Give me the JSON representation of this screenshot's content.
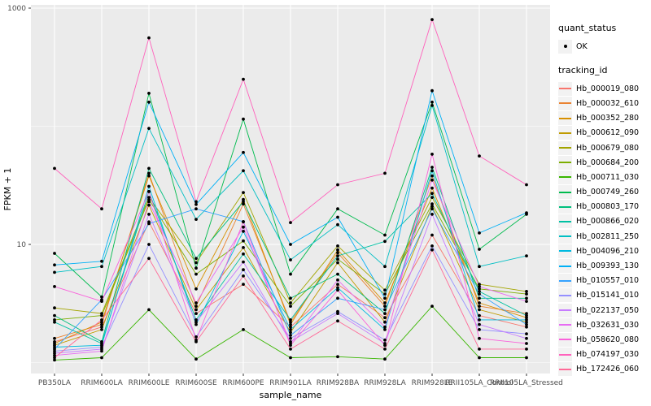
{
  "figure": {
    "background": "#ffffff",
    "panel_background": "#EBEBEB",
    "grid_color": "#FFFFFF",
    "tick_color": "#333333",
    "tick_label_color": "#4D4D4D",
    "point_color": "#000000"
  },
  "legend": {
    "quant_status_title": "quant_status",
    "ok_label": "OK",
    "tracking_id_title": "tracking_id"
  },
  "axes": {
    "x_title": "sample_name",
    "y_title": "FPKM + 1",
    "y_tick_labels": [
      "10",
      "1000"
    ]
  },
  "chart_data": {
    "type": "line",
    "title": "",
    "xlabel": "sample_name",
    "ylabel": "FPKM + 1",
    "y_scale": "log10",
    "y_ticks": [
      10,
      1000
    ],
    "y_grid_minor": [
      1,
      100
    ],
    "ylim": [
      0.8,
      1500
    ],
    "grid": true,
    "legend_position": "right",
    "quant_status": "OK",
    "categories": [
      "PB350LA",
      "RRIM600LA",
      "RRIM600LE",
      "RRIM600SE",
      "RRIM600PE",
      "RRIM901LA",
      "RRIM928BA",
      "RRIM928LA",
      "RRIM928LE",
      "RRII105LA_Control",
      "RRII105LA_Stressed"
    ],
    "series": [
      {
        "name": "Hb_000019_080",
        "color": "#F8766D",
        "values": [
          1.5,
          2.0,
          15.5,
          2.6,
          4.6,
          2.0,
          4.6,
          2.4,
          12,
          2.5,
          2.0
        ]
      },
      {
        "name": "Hb_000032_610",
        "color": "#EA8331",
        "values": [
          1.6,
          2.1,
          40,
          3.0,
          22,
          2.2,
          8.5,
          3.0,
          38,
          3.0,
          2.6
        ]
      },
      {
        "name": "Hb_000352_280",
        "color": "#D89000",
        "values": [
          1.45,
          2.2,
          38,
          4.2,
          24,
          2.1,
          9.0,
          3.2,
          30,
          3.2,
          2.4
        ]
      },
      {
        "name": "Hb_000612_090",
        "color": "#C09B00",
        "values": [
          1.4,
          1.9,
          21.5,
          2.8,
          9.4,
          1.8,
          7.0,
          2.2,
          21,
          2.8,
          2.2
        ]
      },
      {
        "name": "Hb_000679_080",
        "color": "#A3A500",
        "values": [
          2.9,
          2.6,
          25,
          7.0,
          27.5,
          3.2,
          9.7,
          4.1,
          25,
          4.6,
          4.0
        ]
      },
      {
        "name": "Hb_000684_200",
        "color": "#7CAE00",
        "values": [
          2.3,
          2.5,
          24,
          5.6,
          10.7,
          3.0,
          7.5,
          3.8,
          22,
          4.2,
          3.8
        ]
      },
      {
        "name": "Hb_000711_030",
        "color": "#39B600",
        "values": [
          1.05,
          1.1,
          2.8,
          1.07,
          1.9,
          1.1,
          1.12,
          1.07,
          3.0,
          1.1,
          1.1
        ]
      },
      {
        "name": "Hb_000749_260",
        "color": "#00BB4E",
        "values": [
          8.4,
          3.6,
          190,
          6.3,
          115,
          5.6,
          20,
          12,
          160,
          9.1,
          18
        ]
      },
      {
        "name": "Hb_000803_170",
        "color": "#00BF7D",
        "values": [
          2.5,
          1.5,
          44,
          7.6,
          23,
          3.5,
          5.6,
          2.6,
          45,
          3.5,
          3.5
        ]
      },
      {
        "name": "Hb_000866_020",
        "color": "#00C1A3",
        "values": [
          2.2,
          1.45,
          28,
          2.3,
          8.3,
          2.3,
          8.0,
          10.6,
          27,
          4.0,
          2.5
        ]
      },
      {
        "name": "Hb_002811_250",
        "color": "#00BFC4",
        "values": [
          5.8,
          6.5,
          96,
          16.3,
          42,
          7.4,
          14.7,
          6.5,
          150,
          6.5,
          8.0
        ]
      },
      {
        "name": "Hb_004096_210",
        "color": "#00BAE0",
        "values": [
          1.35,
          1.4,
          31,
          2.1,
          12.9,
          1.9,
          4.3,
          1.9,
          42,
          2.3,
          2.3
        ]
      },
      {
        "name": "Hb_009393_130",
        "color": "#00B0F6",
        "values": [
          6.7,
          7.2,
          160,
          21.8,
          60,
          10,
          17,
          3.5,
          200,
          12.5,
          18.5
        ]
      },
      {
        "name": "Hb_010557_010",
        "color": "#35A2FF",
        "values": [
          1.3,
          3.4,
          15,
          20,
          15.6,
          1.7,
          3.5,
          2.8,
          20,
          3.8,
          2.1
        ]
      },
      {
        "name": "Hb_015141_010",
        "color": "#9590FF",
        "values": [
          1.25,
          1.35,
          10,
          1.65,
          6.1,
          1.6,
          2.7,
          1.55,
          9.7,
          1.9,
          1.75
        ]
      },
      {
        "name": "Hb_022137_050",
        "color": "#C77CFF",
        "values": [
          1.2,
          1.3,
          18,
          2.2,
          7.1,
          1.5,
          2.6,
          1.45,
          18,
          2.1,
          1.6
        ]
      },
      {
        "name": "Hb_032631_030",
        "color": "#E76BF3",
        "values": [
          1.15,
          1.25,
          23,
          3.2,
          14,
          1.45,
          5.0,
          2.0,
          35,
          4.4,
          3.3
        ]
      },
      {
        "name": "Hb_058620_080",
        "color": "#FA62DB",
        "values": [
          4.4,
          3.3,
          28,
          1.55,
          15.5,
          1.4,
          4.1,
          1.4,
          58,
          1.6,
          1.45
        ]
      },
      {
        "name": "Hb_074197_030",
        "color": "#FF62BC",
        "values": [
          44,
          20,
          560,
          23,
          250,
          15.3,
          32,
          40,
          800,
          56,
          32
        ]
      },
      {
        "name": "Hb_172426_060",
        "color": "#FF6A98",
        "values": [
          1.1,
          2.3,
          7.6,
          1.5,
          5.4,
          1.3,
          2.25,
          1.3,
          9.0,
          1.3,
          1.3
        ]
      }
    ]
  }
}
